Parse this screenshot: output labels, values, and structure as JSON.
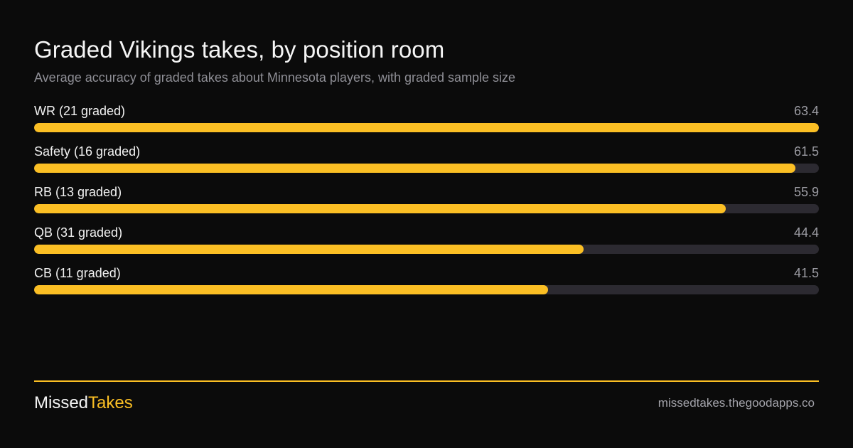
{
  "header": {
    "title": "Graded Vikings takes, by position room",
    "subtitle": "Average accuracy of graded takes about Minnesota players, with graded sample size"
  },
  "chart_data": {
    "type": "bar",
    "orientation": "horizontal",
    "title": "Graded Vikings takes, by position room",
    "subtitle": "Average accuracy of graded takes about Minnesota players, with graded sample size",
    "categories": [
      "WR (21 graded)",
      "Safety (16 graded)",
      "RB (13 graded)",
      "QB (31 graded)",
      "CB (11 graded)"
    ],
    "values": [
      63.4,
      61.5,
      55.9,
      44.4,
      41.5
    ],
    "value_labels": [
      "63.4",
      "61.5",
      "55.9",
      "44.4",
      "41.5"
    ],
    "xlim": [
      0,
      63.4
    ],
    "grid": false,
    "bar_color": "#fbbf24",
    "track_color": "#2c2a31"
  },
  "footer": {
    "brand_part1": "Missed",
    "brand_part2": "Takes",
    "url": "missedtakes.thegoodapps.co"
  },
  "colors": {
    "background": "#0b0b0b",
    "accent": "#fbbf24"
  }
}
